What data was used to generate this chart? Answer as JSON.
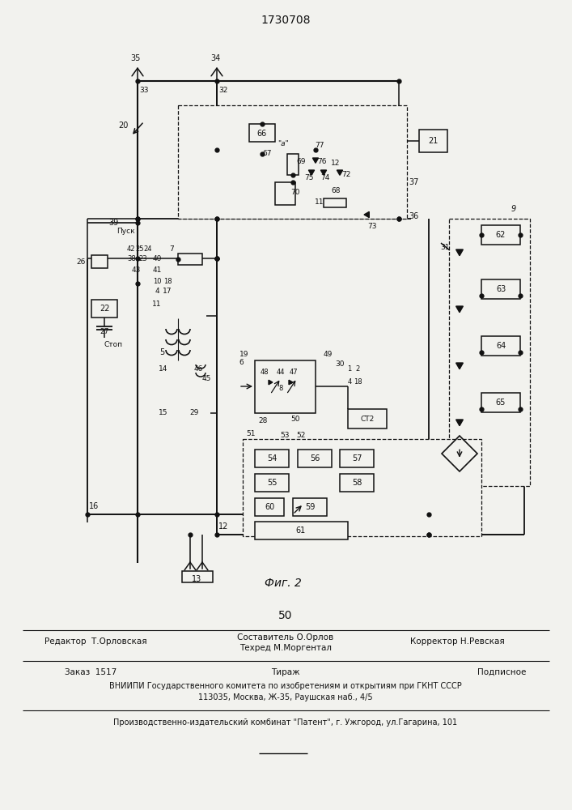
{
  "patent_number": "1730708",
  "page_number": "50",
  "fig_label": "Фиг. 2",
  "background_color": "#f2f2ee",
  "line_color": "#111111",
  "text_color": "#111111",
  "footer_line1_left": "Редактор  Т.Орловская",
  "footer_line1_center1": "Составитель О.Орлов",
  "footer_line1_center2": "Техред М.Моргентал",
  "footer_line1_right": "Корректор Н.Ревская",
  "footer_line2_left": "Заказ  1517",
  "footer_line2_center": "Тираж",
  "footer_line2_right": "Подписное",
  "footer_line3": "ВНИИПИ Государственного комитета по изобретениям и открытиям при ГКНТ СССР",
  "footer_line4": "113035, Москва, Ж-35, Раушская наб., 4/5",
  "footer_line5": "Производственно-издательский комбинат \"Патент\", г. Ужгород, ул.Гагарина, 101"
}
